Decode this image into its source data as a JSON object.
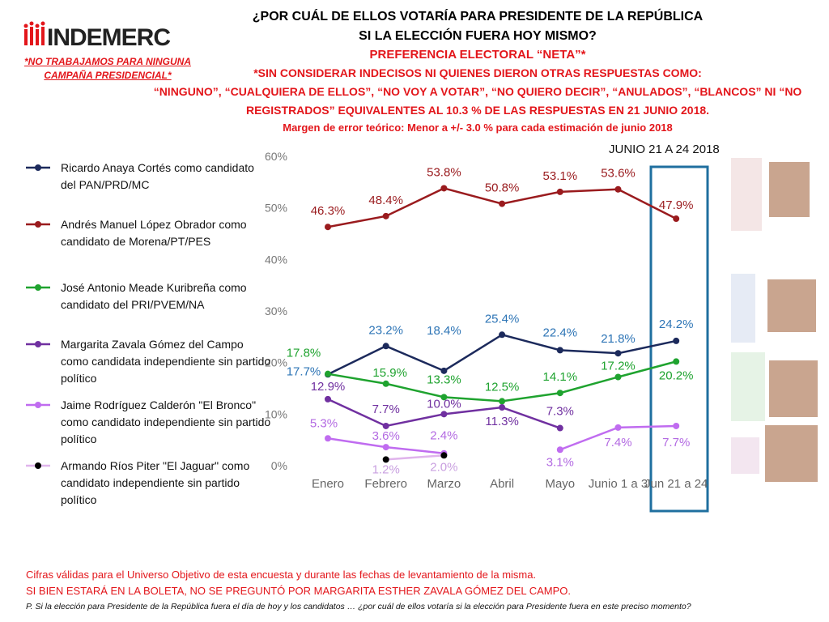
{
  "header": {
    "logo": "INDEMERC",
    "disclaimer": "*NO TRABAJAMOS PARA NINGUNA CAMPAÑA PRESIDENCIAL*",
    "title_lines": [
      "¿POR CUÁL DE ELLOS VOTARÍA PARA PRESIDENTE DE LA REPÚBLICA",
      "SI LA ELECCIÓN FUERA HOY MISMO?"
    ],
    "subtitle": "PREFERENCIA ELECTORAL “NETA”*",
    "notes": [
      "*SIN CONSIDERAR INDECISOS NI QUIENES DIERON OTRAS RESPUESTAS COMO:",
      "“NINGUNO”, “CUALQUIERA DE ELLOS”, “NO VOY A VOTAR”, “NO QUIERO DECIR”, “ANULADOS”, “BLANCOS” NI “NO",
      "REGISTRADOS” EQUIVALENTES AL 10.3 % DE LAS RESPUESTAS EN 21 JUNIO 2018."
    ],
    "margin_note": "Margen de error teórico: Menor a +/- 3.0 % para cada estimación de junio 2018",
    "date": "JUNIO 21 A 24 2018"
  },
  "chart_data": {
    "type": "line",
    "categories": [
      "Enero",
      "Febrero",
      "Marzo",
      "Abril",
      "Mayo",
      "Junio 1 a 3",
      "Jun 21 a 24"
    ],
    "ylim": [
      0,
      60
    ],
    "yticks": [
      {
        "value": 0,
        "label": "0%"
      },
      {
        "value": 10,
        "label": "10%"
      },
      {
        "value": 20,
        "label": "20%"
      },
      {
        "value": 30,
        "label": "30%"
      },
      {
        "value": 40,
        "label": "40%"
      },
      {
        "value": 50,
        "label": "50%"
      },
      {
        "value": 60,
        "label": "60%"
      }
    ],
    "grid": false,
    "series": [
      {
        "name": "Ricardo Anaya Cortés como candidato del PAN/PRD/MC",
        "color": "#1c2a5c",
        "values": [
          17.7,
          23.2,
          18.4,
          25.4,
          22.4,
          21.8,
          24.2
        ],
        "value_labels": [
          "17.7%",
          "23.2%",
          "18.4%",
          "25.4%",
          "22.4%",
          "21.8%",
          "24.2%"
        ],
        "label_color": "#2e75b6"
      },
      {
        "name": "Andrés Manuel López Obrador como candidato de Morena/PT/PES",
        "color": "#9a1b1e",
        "values": [
          46.3,
          48.4,
          53.8,
          50.8,
          53.1,
          53.6,
          47.9
        ],
        "value_labels": [
          "46.3%",
          "48.4%",
          "53.8%",
          "50.8%",
          "53.1%",
          "53.6%",
          "47.9%"
        ],
        "label_color": "#9a1b1e"
      },
      {
        "name": "José Antonio Meade Kuribreña como candidato del PRI/PVEM/NA",
        "color": "#1fa32f",
        "values": [
          17.8,
          15.9,
          13.3,
          12.5,
          14.1,
          17.2,
          20.2
        ],
        "value_labels": [
          "17.8%",
          "15.9%",
          "13.3%",
          "12.5%",
          "14.1%",
          "17.2%",
          "20.2%"
        ],
        "label_color": "#1fa32f"
      },
      {
        "name": "Margarita Zavala Gómez del Campo como candidata independiente sin partido político",
        "color": "#7030a0",
        "values": [
          12.9,
          7.7,
          10.0,
          11.3,
          7.3,
          null,
          null
        ],
        "value_labels": [
          "12.9%",
          "7.7%",
          "10.0%",
          "11.3%",
          "7.3%",
          null,
          null
        ],
        "label_color": "#7030a0"
      },
      {
        "name": "Jaime Rodríguez Calderón \"El Bronco\" como candidato independiente sin partido político",
        "color": "#c06cf0",
        "values": [
          5.3,
          3.6,
          2.4,
          null,
          3.1,
          7.4,
          7.7
        ],
        "value_labels": [
          "5.3%",
          "3.6%",
          "2.4%",
          null,
          "3.1%",
          "7.4%",
          "7.7%"
        ],
        "label_color": "#b36ae2"
      },
      {
        "name": "Armando Ríos Piter \"El Jaguar\" como candidato independiente sin partido político",
        "color": "#e0b4ec",
        "marker_color": "#000000",
        "values": [
          null,
          1.2,
          2.0,
          null,
          null,
          null,
          null
        ],
        "value_labels": [
          null,
          "1.2%",
          "2.0%",
          null,
          null,
          null,
          null
        ],
        "label_color": "#c9a0e0"
      }
    ]
  },
  "footer": {
    "lines": [
      "Cifras válidas para el Universo Objetivo de esta encuesta y durante las fechas de levantamiento de la misma.",
      "SI BIEN ESTARÁ EN LA BOLETA, NO SE PREGUNTÓ POR MARGARITA ESTHER ZAVALA GÓMEZ DEL CAMPO."
    ],
    "question": "P. Si la elección para Presidente de la República fuera el día de hoy y los candidatos … ¿por cuál de ellos votaría si la elección para Presidente fuera en este preciso momento?"
  }
}
